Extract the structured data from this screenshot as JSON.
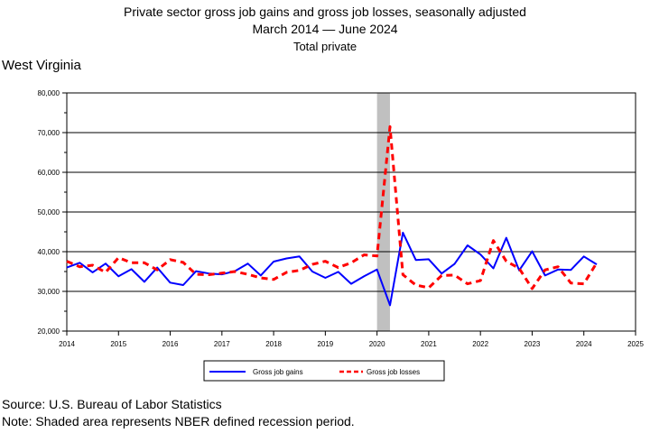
{
  "header": {
    "title": "Private sector gross job gains and gross job losses, seasonally adjusted",
    "date_range_start": "March 2014",
    "date_range_end": "June 2024",
    "subtitle": "Total private",
    "region": "West Virginia"
  },
  "footer": {
    "source": "Source: U.S. Bureau of Labor Statistics",
    "note": "Note: Shaded area represents NBER defined recession period."
  },
  "chart_data": {
    "type": "line",
    "x_ticks": [
      "2014",
      "2015",
      "2016",
      "2017",
      "2018",
      "2019",
      "2020",
      "2021",
      "2022",
      "2023",
      "2024",
      "2025"
    ],
    "y_ticks": [
      "20,000",
      "30,000",
      "40,000",
      "50,000",
      "60,000",
      "70,000",
      "80,000"
    ],
    "ylim": [
      20000,
      80000
    ],
    "xlim": [
      2014,
      2025
    ],
    "grid": "horizontal",
    "legend_position": "bottom",
    "recession": {
      "start": 2020.0,
      "end": 2020.25
    },
    "x": [
      2014.0,
      2014.25,
      2014.5,
      2014.75,
      2015.0,
      2015.25,
      2015.5,
      2015.75,
      2016.0,
      2016.25,
      2016.5,
      2016.75,
      2017.0,
      2017.25,
      2017.5,
      2017.75,
      2018.0,
      2018.25,
      2018.5,
      2018.75,
      2019.0,
      2019.25,
      2019.5,
      2019.75,
      2020.0,
      2020.25,
      2020.5,
      2020.75,
      2021.0,
      2021.25,
      2021.5,
      2021.75,
      2022.0,
      2022.25,
      2022.5,
      2022.75,
      2023.0,
      2023.25,
      2023.5,
      2023.75,
      2024.0,
      2024.25
    ],
    "series": [
      {
        "name": "Gross job gains",
        "color": "#0000ff",
        "dash": "solid",
        "values": [
          36000,
          37200,
          34800,
          37000,
          33800,
          35600,
          32400,
          36000,
          32200,
          31600,
          35100,
          34500,
          34300,
          35100,
          37000,
          34000,
          37500,
          38300,
          38800,
          35000,
          33400,
          34900,
          31900,
          33800,
          35500,
          26500,
          44800,
          37900,
          38100,
          34500,
          36900,
          41600,
          39300,
          35800,
          43500,
          35300,
          40100,
          34000,
          35500,
          35400,
          38800,
          36800
        ]
      },
      {
        "name": "Gross job losses",
        "color": "#ff0000",
        "dash": "dashed",
        "values": [
          37600,
          36200,
          36600,
          34800,
          38500,
          37200,
          37200,
          35400,
          38000,
          37300,
          34300,
          34200,
          34600,
          35000,
          34300,
          33400,
          33000,
          34800,
          35300,
          36800,
          37600,
          36000,
          37200,
          39200,
          38900,
          71500,
          34200,
          31600,
          30900,
          34000,
          34100,
          31900,
          32700,
          42800,
          37600,
          35800,
          30700,
          35400,
          36200,
          32100,
          31900,
          37200
        ]
      }
    ]
  }
}
